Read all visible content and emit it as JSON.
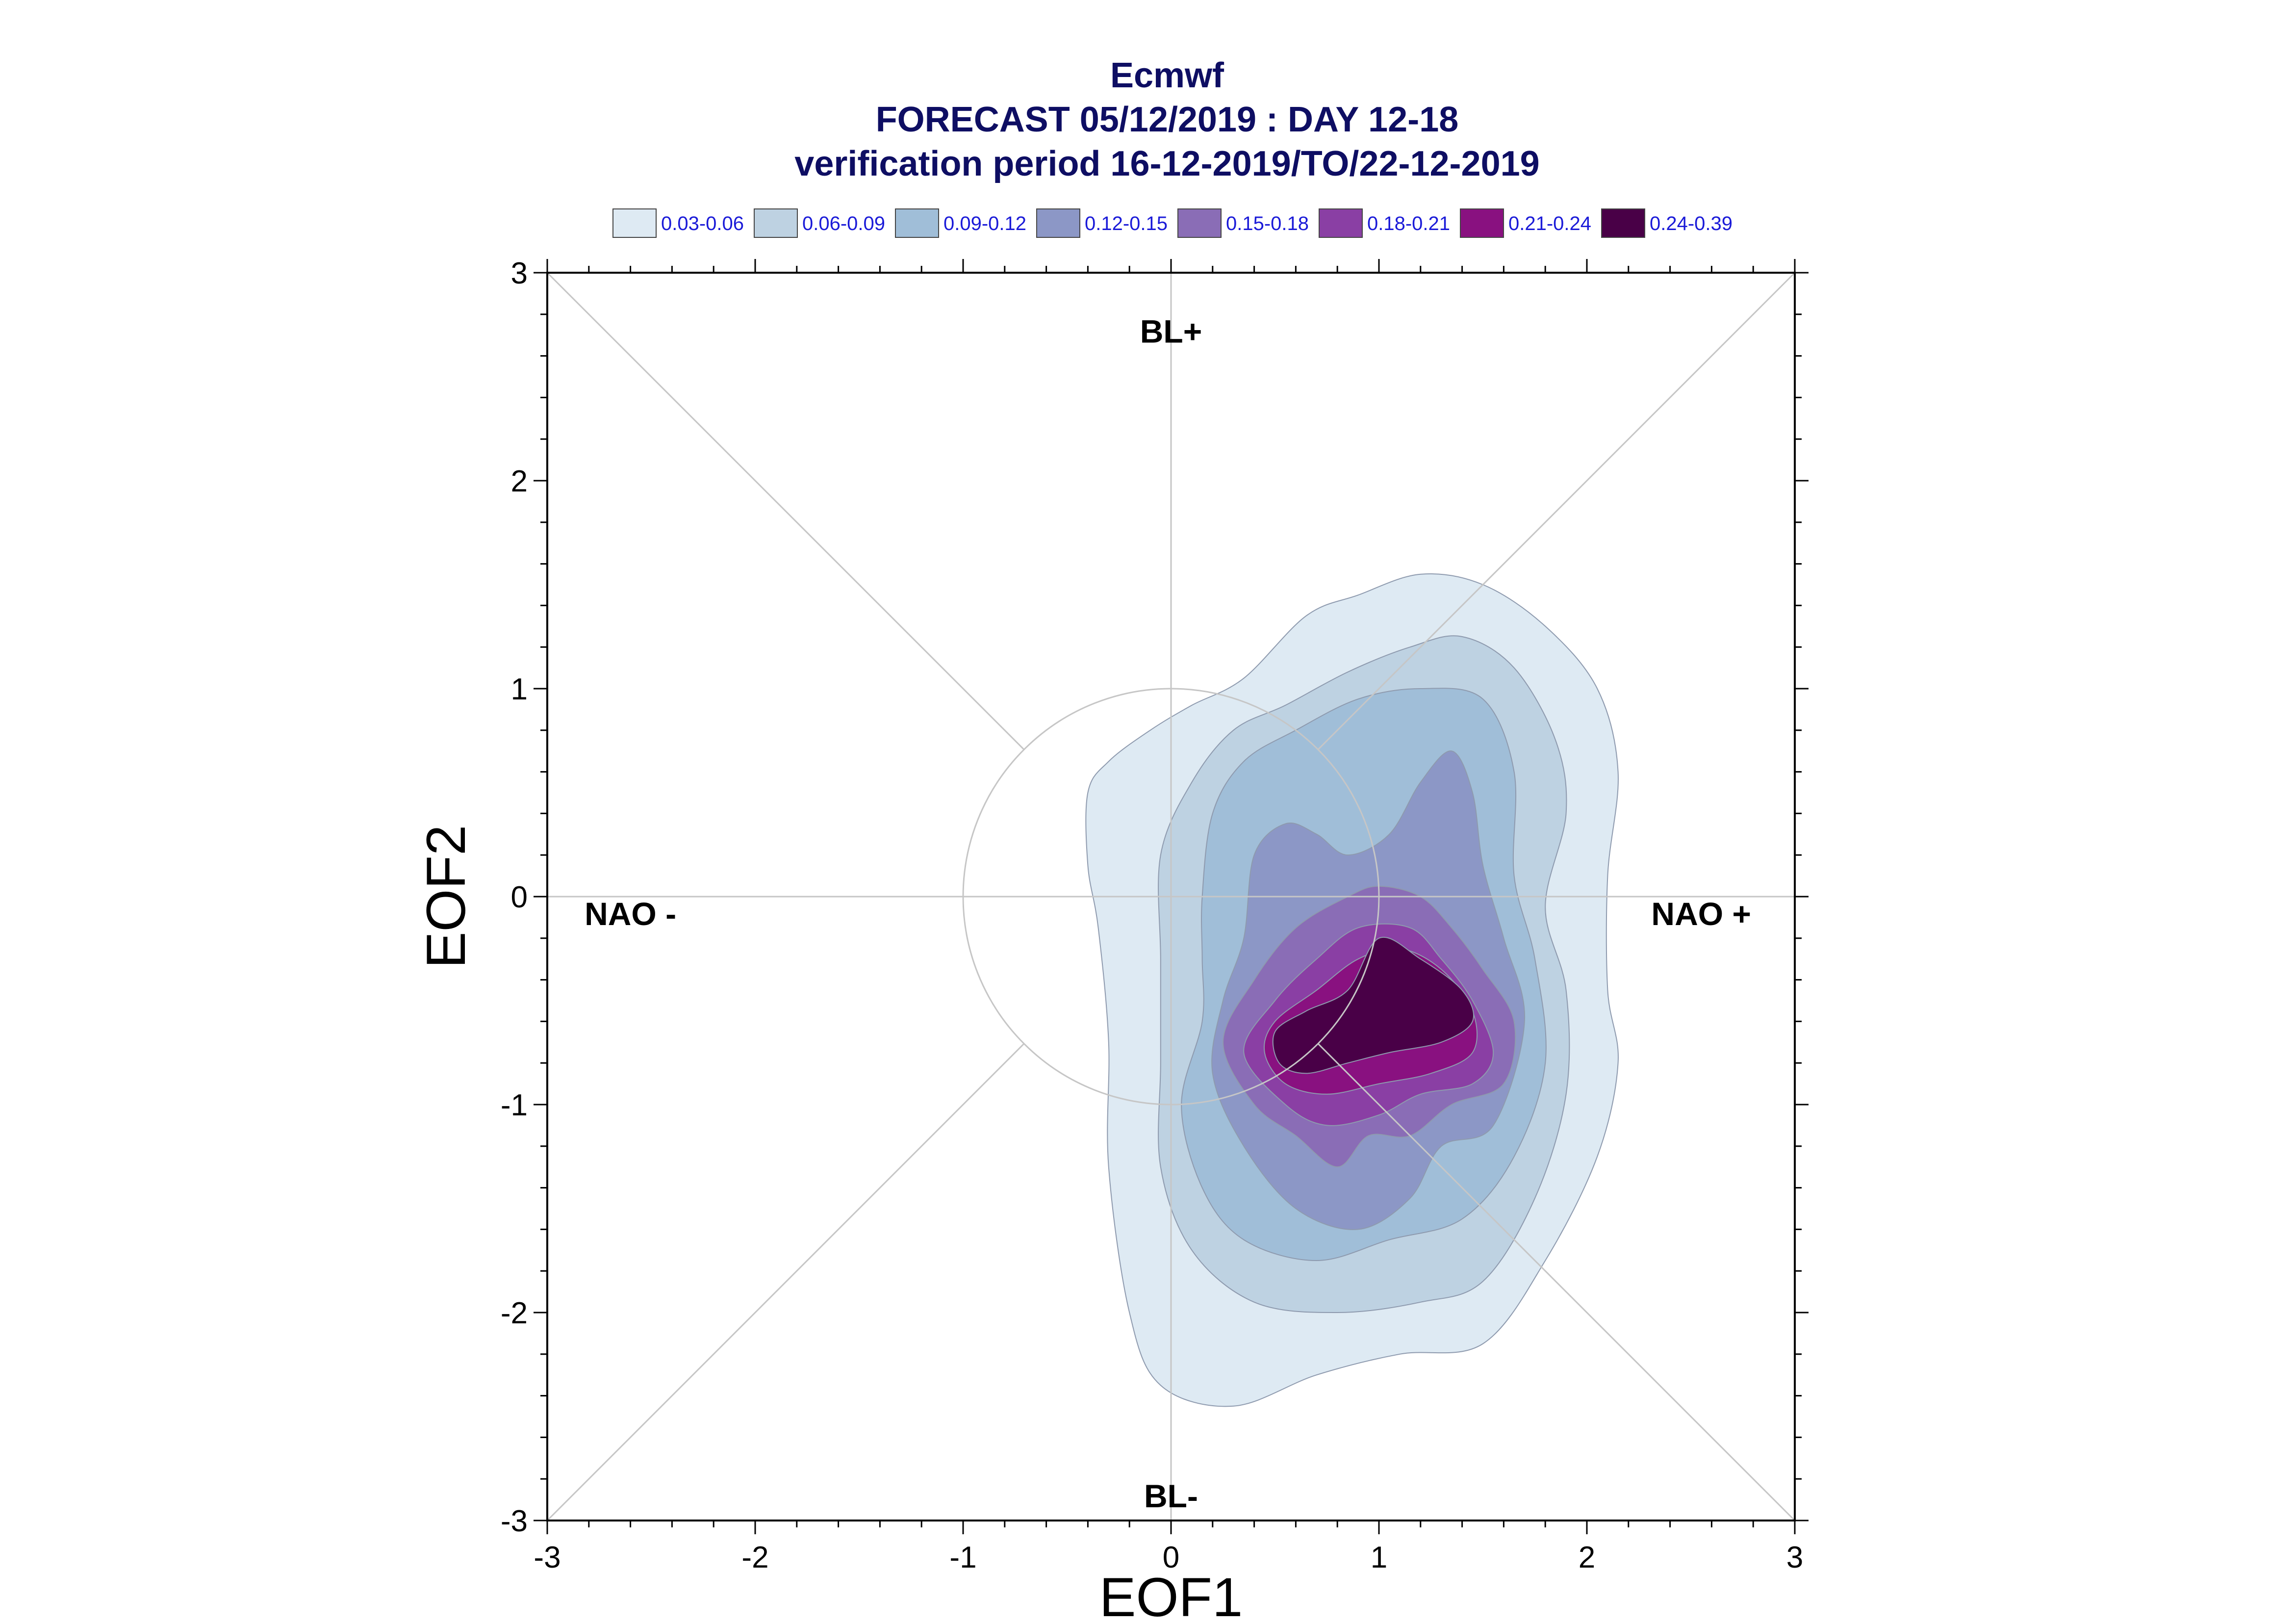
{
  "chart_data": {
    "type": "contour",
    "title": [
      "Ecmwf",
      "FORECAST 05/12/2019 : DAY 12-18",
      "verification period 16-12-2019/TO/22-12-2019"
    ],
    "xlabel": "EOF1",
    "ylabel": "EOF2",
    "xlim": [
      -3,
      3
    ],
    "ylim": [
      -3,
      3
    ],
    "x_ticks": [
      "-3",
      "-2",
      "-1",
      "0",
      "1",
      "2",
      "3"
    ],
    "y_ticks": [
      "-3",
      "-2",
      "-1",
      "0",
      "1",
      "2",
      "3"
    ],
    "grid": false,
    "legend_position": "top",
    "reference_circle_radius": 1,
    "regime_labels": [
      {
        "text": "BL+",
        "x": 0,
        "y": 2.72
      },
      {
        "text": "BL-",
        "x": 0,
        "y": -2.88
      },
      {
        "text": "NAO -",
        "x": -2.6,
        "y": -0.08
      },
      {
        "text": "NAO +",
        "x": 2.55,
        "y": -0.08
      }
    ],
    "levels": [
      {
        "label": "0.03-0.06",
        "color": "#deeaf3",
        "points": [
          [
            -0.4,
            0.5
          ],
          [
            -0.3,
            0.65
          ],
          [
            -0.1,
            0.8
          ],
          [
            0.1,
            0.92
          ],
          [
            0.35,
            1.05
          ],
          [
            0.65,
            1.35
          ],
          [
            0.9,
            1.45
          ],
          [
            1.2,
            1.55
          ],
          [
            1.5,
            1.5
          ],
          [
            1.8,
            1.3
          ],
          [
            2.05,
            1.0
          ],
          [
            2.15,
            0.6
          ],
          [
            2.1,
            0.1
          ],
          [
            2.1,
            -0.45
          ],
          [
            2.15,
            -0.8
          ],
          [
            2.05,
            -1.25
          ],
          [
            1.8,
            -1.75
          ],
          [
            1.5,
            -2.15
          ],
          [
            1.1,
            -2.2
          ],
          [
            0.7,
            -2.3
          ],
          [
            0.3,
            -2.45
          ],
          [
            -0.05,
            -2.35
          ],
          [
            -0.2,
            -2.0
          ],
          [
            -0.3,
            -1.3
          ],
          [
            -0.3,
            -0.7
          ],
          [
            -0.35,
            -0.15
          ],
          [
            -0.4,
            0.15
          ]
        ]
      },
      {
        "label": "0.06-0.09",
        "color": "#bed2e2",
        "points": [
          [
            -0.05,
            0.2
          ],
          [
            0.1,
            0.55
          ],
          [
            0.3,
            0.8
          ],
          [
            0.55,
            0.92
          ],
          [
            0.85,
            1.08
          ],
          [
            1.15,
            1.2
          ],
          [
            1.4,
            1.25
          ],
          [
            1.65,
            1.1
          ],
          [
            1.85,
            0.75
          ],
          [
            1.9,
            0.4
          ],
          [
            1.8,
            -0.05
          ],
          [
            1.9,
            -0.45
          ],
          [
            1.9,
            -0.95
          ],
          [
            1.75,
            -1.45
          ],
          [
            1.5,
            -1.85
          ],
          [
            1.2,
            -1.95
          ],
          [
            0.8,
            -2.0
          ],
          [
            0.4,
            -1.95
          ],
          [
            0.1,
            -1.7
          ],
          [
            -0.05,
            -1.3
          ],
          [
            -0.05,
            -0.8
          ],
          [
            -0.05,
            -0.3
          ]
        ]
      },
      {
        "label": "0.09-0.12",
        "color": "#a0bed8",
        "points": [
          [
            0.15,
            0.0
          ],
          [
            0.2,
            0.4
          ],
          [
            0.35,
            0.65
          ],
          [
            0.6,
            0.8
          ],
          [
            0.9,
            0.95
          ],
          [
            1.2,
            1.0
          ],
          [
            1.5,
            0.95
          ],
          [
            1.65,
            0.6
          ],
          [
            1.65,
            0.1
          ],
          [
            1.75,
            -0.3
          ],
          [
            1.8,
            -0.8
          ],
          [
            1.65,
            -1.25
          ],
          [
            1.4,
            -1.55
          ],
          [
            1.05,
            -1.65
          ],
          [
            0.7,
            -1.75
          ],
          [
            0.35,
            -1.65
          ],
          [
            0.15,
            -1.4
          ],
          [
            0.05,
            -1.0
          ],
          [
            0.15,
            -0.6
          ],
          [
            0.15,
            -0.3
          ]
        ]
      },
      {
        "label": "0.12-0.15",
        "color": "#8c97c6",
        "points": [
          [
            0.35,
            -0.2
          ],
          [
            0.4,
            0.2
          ],
          [
            0.55,
            0.35
          ],
          [
            0.7,
            0.3
          ],
          [
            0.85,
            0.2
          ],
          [
            1.05,
            0.3
          ],
          [
            1.2,
            0.55
          ],
          [
            1.35,
            0.7
          ],
          [
            1.45,
            0.5
          ],
          [
            1.5,
            0.15
          ],
          [
            1.6,
            -0.2
          ],
          [
            1.7,
            -0.6
          ],
          [
            1.55,
            -1.1
          ],
          [
            1.3,
            -1.2
          ],
          [
            1.15,
            -1.45
          ],
          [
            0.9,
            -1.6
          ],
          [
            0.6,
            -1.5
          ],
          [
            0.35,
            -1.2
          ],
          [
            0.2,
            -0.85
          ],
          [
            0.25,
            -0.5
          ]
        ]
      },
      {
        "label": "0.15-0.18",
        "color": "#8a6db6",
        "points": [
          [
            0.4,
            -0.4
          ],
          [
            0.6,
            -0.15
          ],
          [
            0.85,
            0.0
          ],
          [
            1.0,
            0.05
          ],
          [
            1.2,
            0.0
          ],
          [
            1.35,
            -0.15
          ],
          [
            1.5,
            -0.35
          ],
          [
            1.65,
            -0.6
          ],
          [
            1.6,
            -0.9
          ],
          [
            1.35,
            -1.0
          ],
          [
            1.15,
            -1.15
          ],
          [
            0.95,
            -1.15
          ],
          [
            0.8,
            -1.3
          ],
          [
            0.6,
            -1.15
          ],
          [
            0.4,
            -1.0
          ],
          [
            0.25,
            -0.7
          ]
        ]
      },
      {
        "label": "0.18-0.21",
        "color": "#8a3fa4",
        "points": [
          [
            0.5,
            -0.5
          ],
          [
            0.7,
            -0.3
          ],
          [
            0.9,
            -0.15
          ],
          [
            1.15,
            -0.15
          ],
          [
            1.3,
            -0.3
          ],
          [
            1.45,
            -0.5
          ],
          [
            1.55,
            -0.75
          ],
          [
            1.45,
            -0.9
          ],
          [
            1.2,
            -0.95
          ],
          [
            1.0,
            -1.05
          ],
          [
            0.75,
            -1.1
          ],
          [
            0.55,
            -1.0
          ],
          [
            0.35,
            -0.75
          ]
        ]
      },
      {
        "label": "0.21-0.24",
        "color": "#891180",
        "points": [
          [
            0.5,
            -0.6
          ],
          [
            0.7,
            -0.45
          ],
          [
            0.9,
            -0.3
          ],
          [
            1.1,
            -0.25
          ],
          [
            1.3,
            -0.35
          ],
          [
            1.45,
            -0.55
          ],
          [
            1.45,
            -0.75
          ],
          [
            1.25,
            -0.85
          ],
          [
            1.0,
            -0.9
          ],
          [
            0.75,
            -0.95
          ],
          [
            0.55,
            -0.9
          ],
          [
            0.45,
            -0.75
          ]
        ]
      },
      {
        "label": "0.24-0.39",
        "color": "#490047",
        "points": [
          [
            0.5,
            -0.65
          ],
          [
            0.65,
            -0.55
          ],
          [
            0.85,
            -0.45
          ],
          [
            1.0,
            -0.2
          ],
          [
            1.2,
            -0.3
          ],
          [
            1.4,
            -0.45
          ],
          [
            1.45,
            -0.6
          ],
          [
            1.3,
            -0.7
          ],
          [
            1.05,
            -0.75
          ],
          [
            0.85,
            -0.8
          ],
          [
            0.65,
            -0.85
          ],
          [
            0.52,
            -0.8
          ]
        ]
      }
    ]
  }
}
